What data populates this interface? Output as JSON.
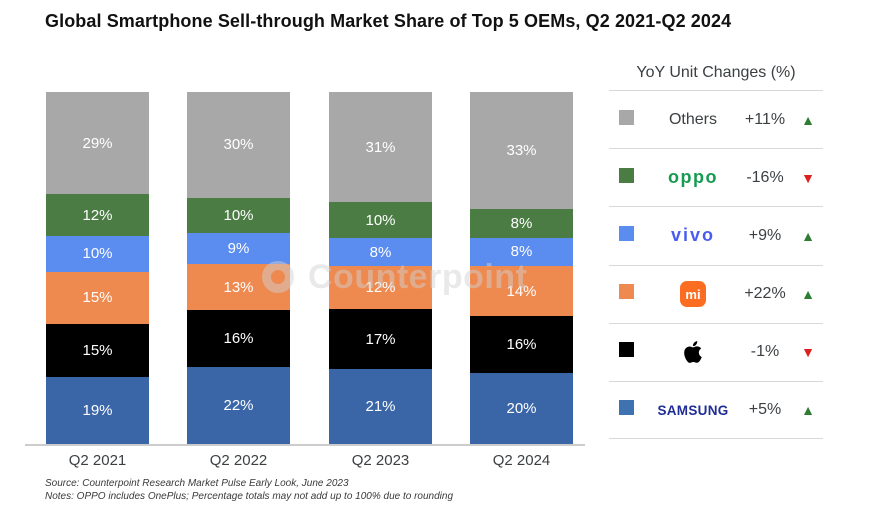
{
  "title": "Global Smartphone Sell-through Market Share of Top 5 OEMs, Q2 2021-Q2 2024",
  "chart_data": {
    "type": "bar",
    "subtype": "stacked-100",
    "categories": [
      "Q2 2021",
      "Q2 2022",
      "Q2 2023",
      "Q2 2024"
    ],
    "series": [
      {
        "name": "Samsung",
        "color": "#3a66a8",
        "values": [
          19,
          22,
          21,
          20
        ]
      },
      {
        "name": "Apple",
        "color": "#000000",
        "values": [
          15,
          16,
          17,
          16
        ]
      },
      {
        "name": "Xiaomi",
        "color": "#ee8a4f",
        "values": [
          15,
          13,
          12,
          14
        ]
      },
      {
        "name": "vivo",
        "color": "#5b8cf0",
        "values": [
          10,
          9,
          8,
          8
        ]
      },
      {
        "name": "OPPO",
        "color": "#4a7c43",
        "values": [
          12,
          10,
          10,
          8
        ]
      },
      {
        "name": "Others",
        "color": "#a8a8a8",
        "values": [
          29,
          30,
          31,
          33
        ]
      }
    ],
    "value_suffix": "%",
    "ylim": [
      0,
      100
    ],
    "grid": false,
    "legend_position": "right"
  },
  "legend": {
    "title": "YoY Unit Changes (%)",
    "rows": [
      {
        "name": "Others",
        "logo": "text",
        "label": "Others",
        "swatch": "#a8a8a8",
        "change": "+11%",
        "direction": "up"
      },
      {
        "name": "OPPO",
        "logo": "oppo",
        "label": "oppo",
        "swatch": "#4a7c43",
        "change": "-16%",
        "direction": "down"
      },
      {
        "name": "vivo",
        "logo": "vivo",
        "label": "vivo",
        "swatch": "#5b8cf0",
        "change": "+9%",
        "direction": "up"
      },
      {
        "name": "Xiaomi",
        "logo": "mi",
        "label": "mi",
        "swatch": "#ee8a4f",
        "change": "+22%",
        "direction": "up"
      },
      {
        "name": "Apple",
        "logo": "apple",
        "label": "",
        "swatch": "#000000",
        "change": "-1%",
        "direction": "down"
      },
      {
        "name": "Samsung",
        "logo": "samsung",
        "label": "SAMSUNG",
        "swatch": "#3e72b0",
        "change": "+5%",
        "direction": "up"
      }
    ]
  },
  "colors": {
    "up_arrow": "#2e7d32",
    "down_arrow": "#dc2020"
  },
  "icons": {
    "up": "▲",
    "down": "▼"
  },
  "watermark": {
    "logo": "counterpoint-ring",
    "text": "Counterpoint"
  },
  "footer": {
    "source": "Source: Counterpoint Research Market Pulse Early Look, June 2023",
    "notes": "Notes: OPPO includes OnePlus; Percentage totals may not add up to 100% due to rounding"
  }
}
